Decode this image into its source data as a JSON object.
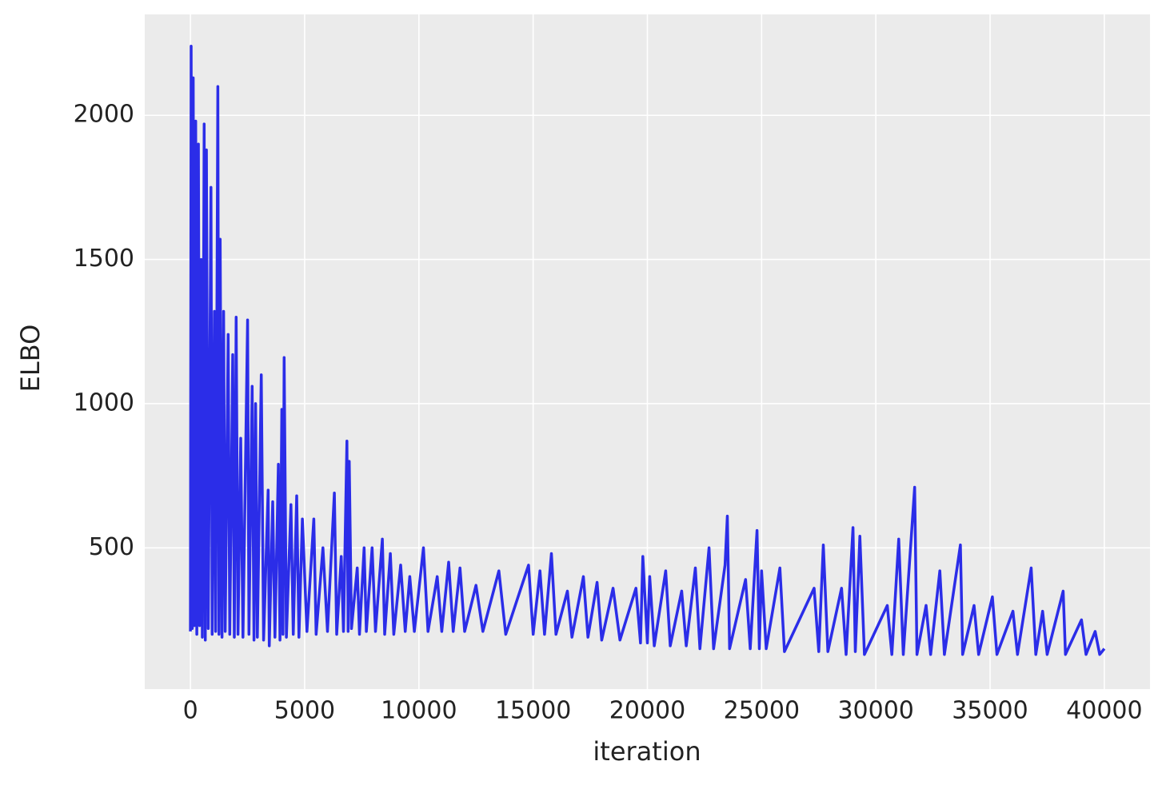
{
  "chart_data": {
    "type": "line",
    "xlabel": "iteration",
    "ylabel": "ELBO",
    "color": "#2b2de8",
    "grid": true,
    "xlim": [
      -2000,
      42000
    ],
    "ylim": [
      10,
      2350
    ],
    "xticks": [
      0,
      5000,
      10000,
      15000,
      20000,
      25000,
      30000,
      35000,
      40000
    ],
    "yticks": [
      500,
      1000,
      1500,
      2000
    ],
    "x": [
      0,
      30,
      80,
      120,
      170,
      230,
      280,
      350,
      400,
      470,
      520,
      600,
      650,
      700,
      780,
      900,
      950,
      1050,
      1100,
      1200,
      1250,
      1300,
      1380,
      1450,
      1520,
      1650,
      1720,
      1850,
      1920,
      2000,
      2080,
      2200,
      2300,
      2500,
      2560,
      2700,
      2780,
      2850,
      2930,
      3100,
      3200,
      3400,
      3450,
      3600,
      3700,
      3850,
      3920,
      4000,
      4050,
      4100,
      4200,
      4400,
      4500,
      4650,
      4750,
      4900,
      5100,
      5400,
      5500,
      5800,
      6000,
      6300,
      6400,
      6600,
      6700,
      6850,
      6900,
      6950,
      7050,
      7300,
      7400,
      7600,
      7700,
      7950,
      8100,
      8400,
      8500,
      8750,
      8900,
      9200,
      9400,
      9600,
      9800,
      10200,
      10400,
      10800,
      11000,
      11300,
      11500,
      11800,
      12000,
      12500,
      12800,
      13500,
      13800,
      14800,
      15000,
      15300,
      15500,
      15800,
      16000,
      16500,
      16700,
      17200,
      17400,
      17800,
      18000,
      18500,
      18800,
      19500,
      19700,
      19800,
      20000,
      20100,
      20300,
      20800,
      21000,
      21500,
      21700,
      22100,
      22300,
      22700,
      22900,
      23400,
      23500,
      23600,
      24300,
      24500,
      24800,
      24900,
      25000,
      25200,
      25800,
      26000,
      27300,
      27500,
      27700,
      27900,
      28500,
      28700,
      29000,
      29100,
      29300,
      29500,
      30500,
      30700,
      31000,
      31200,
      31700,
      31800,
      32200,
      32400,
      32800,
      33000,
      33700,
      33800,
      34300,
      34500,
      35100,
      35300,
      36000,
      36200,
      36800,
      37000,
      37300,
      37500,
      38200,
      38300,
      39000,
      39200,
      39600,
      39800,
      40000
    ],
    "values": [
      210,
      2240,
      220,
      2130,
      230,
      1980,
      200,
      1900,
      230,
      1500,
      190,
      1970,
      180,
      1880,
      220,
      1750,
      200,
      1320,
      210,
      2100,
      200,
      1570,
      190,
      1320,
      210,
      1240,
      200,
      1170,
      190,
      1300,
      200,
      880,
      190,
      1290,
      200,
      1060,
      180,
      1000,
      190,
      1100,
      180,
      700,
      160,
      660,
      190,
      790,
      180,
      980,
      200,
      1160,
      190,
      650,
      200,
      680,
      190,
      600,
      210,
      600,
      200,
      500,
      210,
      690,
      200,
      470,
      210,
      870,
      210,
      800,
      220,
      430,
      200,
      500,
      210,
      500,
      210,
      530,
      200,
      480,
      200,
      440,
      210,
      400,
      210,
      500,
      210,
      400,
      210,
      450,
      210,
      430,
      210,
      370,
      210,
      420,
      200,
      440,
      200,
      420,
      200,
      480,
      200,
      350,
      190,
      400,
      190,
      380,
      180,
      360,
      180,
      360,
      170,
      470,
      170,
      400,
      160,
      420,
      160,
      350,
      160,
      430,
      150,
      500,
      150,
      440,
      610,
      150,
      390,
      150,
      560,
      150,
      420,
      150,
      430,
      140,
      360,
      140,
      510,
      140,
      360,
      130,
      570,
      140,
      540,
      130,
      300,
      130,
      530,
      130,
      710,
      130,
      300,
      130,
      420,
      130,
      510,
      130,
      300,
      130,
      330,
      130,
      280,
      130,
      430,
      130,
      280,
      130,
      350,
      130,
      250,
      130,
      210,
      130,
      150
    ]
  }
}
